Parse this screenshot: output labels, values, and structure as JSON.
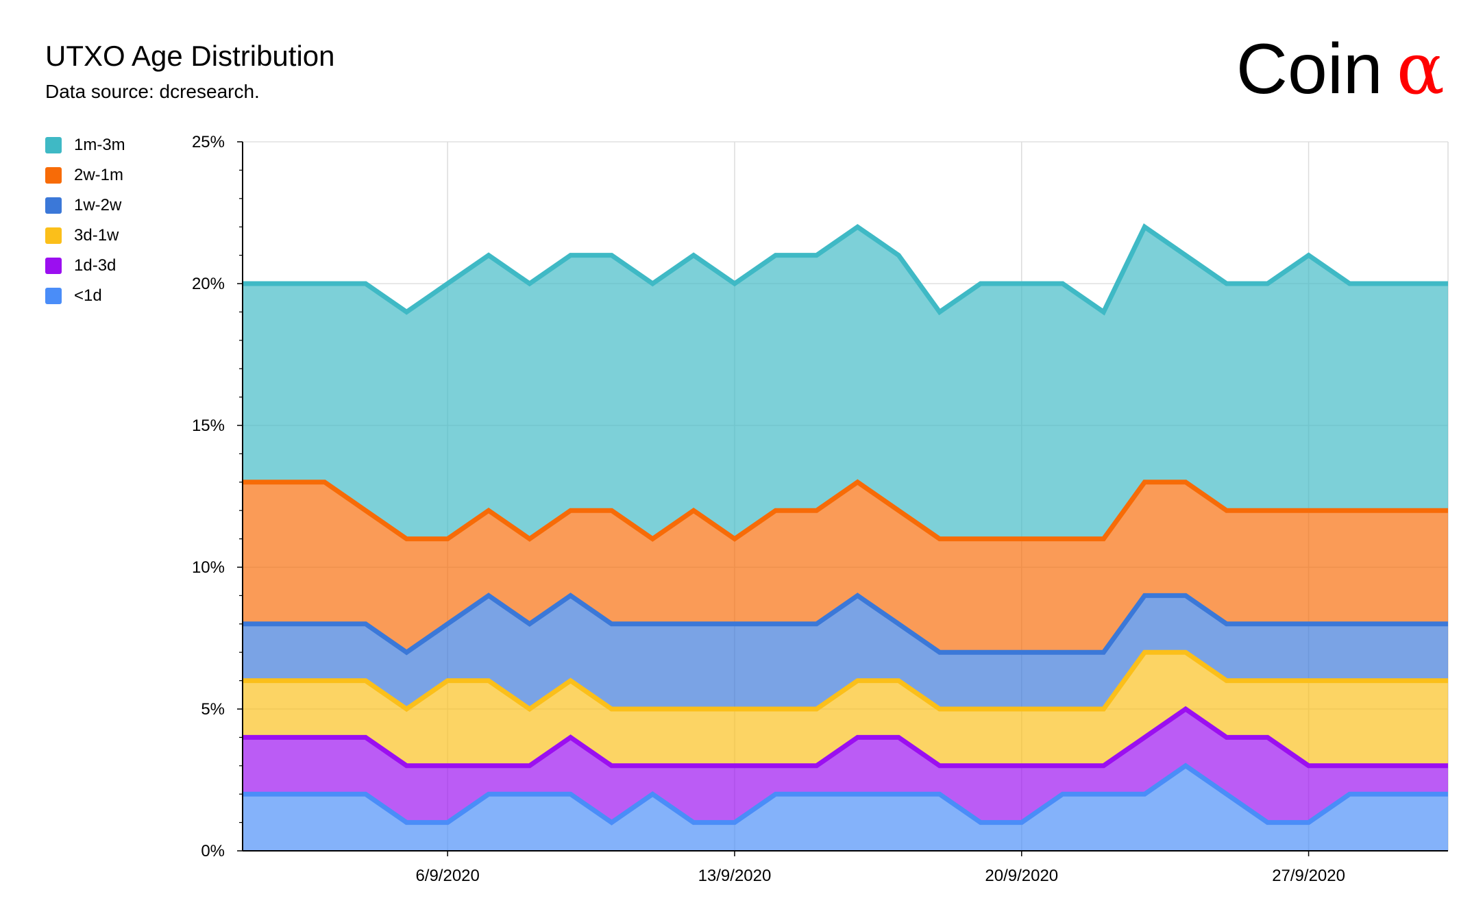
{
  "header": {
    "title": "UTXO Age Distribution",
    "subtitle": "Data source: dcresearch.",
    "brand_text": "Coin",
    "brand_symbol": "α"
  },
  "chart_data": {
    "type": "area",
    "stacked": true,
    "title": "UTXO Age Distribution",
    "subtitle": "Data source: dcresearch.",
    "xlabel": "",
    "ylabel": "",
    "ylim": [
      0,
      25
    ],
    "y_unit": "%",
    "y_ticks": [
      "0%",
      "5%",
      "10%",
      "15%",
      "20%",
      "25%"
    ],
    "x_ticks": [
      "6/9/2020",
      "13/9/2020",
      "20/9/2020",
      "27/9/2020"
    ],
    "x_start": "2020-09-01",
    "x": [
      "2020-09-01",
      "2020-09-02",
      "2020-09-03",
      "2020-09-04",
      "2020-09-05",
      "2020-09-06",
      "2020-09-07",
      "2020-09-08",
      "2020-09-09",
      "2020-09-10",
      "2020-09-11",
      "2020-09-12",
      "2020-09-13",
      "2020-09-14",
      "2020-09-15",
      "2020-09-16",
      "2020-09-17",
      "2020-09-18",
      "2020-09-19",
      "2020-09-20",
      "2020-09-21",
      "2020-09-22",
      "2020-09-23",
      "2020-09-24",
      "2020-09-25",
      "2020-09-26",
      "2020-09-27",
      "2020-09-28",
      "2020-09-29",
      "2020-09-30"
    ],
    "grid": true,
    "legend_position": "left",
    "series": [
      {
        "name": "<1d",
        "color": "#4a8df8",
        "values": [
          2,
          2,
          2,
          2,
          1,
          1,
          2,
          2,
          2,
          1,
          2,
          1,
          1,
          2,
          2,
          2,
          2,
          2,
          1,
          1,
          2,
          2,
          2,
          3,
          2,
          1,
          1,
          2,
          2,
          2
        ]
      },
      {
        "name": "1d-3d",
        "color": "#9b0ff0",
        "values": [
          2,
          2,
          2,
          2,
          2,
          2,
          1,
          1,
          2,
          2,
          1,
          2,
          2,
          1,
          1,
          2,
          2,
          1,
          2,
          2,
          1,
          1,
          2,
          2,
          2,
          3,
          2,
          1,
          1,
          1
        ]
      },
      {
        "name": "3d-1w",
        "color": "#fbbf1a",
        "values": [
          2,
          2,
          2,
          2,
          2,
          3,
          3,
          2,
          2,
          2,
          2,
          2,
          2,
          2,
          2,
          2,
          2,
          2,
          2,
          2,
          2,
          2,
          3,
          2,
          2,
          2,
          3,
          3,
          3,
          3
        ]
      },
      {
        "name": "1w-2w",
        "color": "#3b78d8",
        "values": [
          2,
          2,
          2,
          2,
          2,
          2,
          3,
          3,
          3,
          3,
          3,
          3,
          3,
          3,
          3,
          3,
          2,
          2,
          2,
          2,
          2,
          2,
          2,
          2,
          2,
          2,
          2,
          2,
          2,
          2
        ]
      },
      {
        "name": "2w-1m",
        "color": "#f76b07",
        "values": [
          5,
          5,
          5,
          4,
          4,
          3,
          3,
          3,
          3,
          4,
          3,
          4,
          3,
          4,
          4,
          4,
          4,
          4,
          4,
          4,
          4,
          4,
          4,
          4,
          4,
          4,
          4,
          4,
          4,
          4
        ]
      },
      {
        "name": "1m-3m",
        "color": "#3fb9c5",
        "values": [
          7,
          7,
          7,
          8,
          8,
          9,
          9,
          9,
          9,
          9,
          9,
          9,
          9,
          9,
          9,
          9,
          9,
          8,
          9,
          9,
          9,
          8,
          9,
          8,
          8,
          8,
          9,
          8,
          8,
          8
        ]
      }
    ]
  }
}
